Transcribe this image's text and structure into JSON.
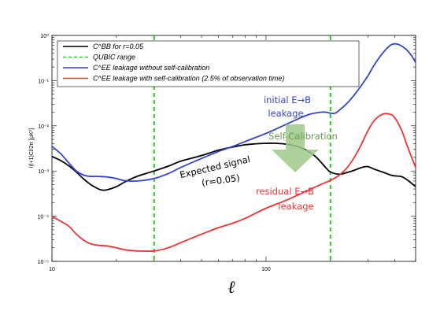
{
  "chart_data": {
    "type": "line",
    "title": "",
    "xlabel": "ℓ",
    "ylabel": "l(l+1)Cl/2π [μK²]",
    "xscale": "log",
    "yscale": "log",
    "xlim": [
      10,
      500
    ],
    "ylim": [
      1e-05,
      1
    ],
    "grid": false,
    "legend_position": "top-left",
    "x_ticks": [
      {
        "value": 10,
        "label": "10"
      },
      {
        "value": 100,
        "label": "100"
      }
    ],
    "y_ticks": [
      {
        "value": 1e-05,
        "label": "10⁻⁵"
      },
      {
        "value": 0.0001,
        "label": "10⁻⁴"
      },
      {
        "value": 0.001,
        "label": "10⁻³"
      },
      {
        "value": 0.01,
        "label": "10⁻²"
      },
      {
        "value": 0.1,
        "label": "10⁻¹"
      },
      {
        "value": 1,
        "label": "10⁰"
      }
    ],
    "legend": [
      {
        "label": "C^BB for r=0.05",
        "color": "#000000",
        "dash": false
      },
      {
        "label": "QUBIC range",
        "color": "#22cc22",
        "dash": true
      },
      {
        "label": "C^EE leakage without self-calibration",
        "color": "#3344cc",
        "dash": false
      },
      {
        "label": "C^EE leakage with self-calibration (2.5% of observation time)",
        "color": "#ee3333",
        "dash": false
      }
    ],
    "series": [
      {
        "key": "bb",
        "color": "#000000",
        "x": [
          10,
          11,
          12,
          13,
          14,
          15,
          16,
          17,
          18,
          20,
          22,
          25,
          30,
          35,
          40,
          50,
          60,
          70,
          80,
          90,
          100,
          110,
          120,
          130,
          140,
          150,
          160,
          170,
          180,
          190,
          200,
          220,
          240,
          260,
          280,
          300,
          320,
          350,
          380,
          400,
          430,
          460,
          500
        ],
        "y": [
          0.0021,
          0.0017,
          0.0013,
          0.00095,
          0.00068,
          0.00052,
          0.00043,
          0.00038,
          0.00038,
          0.00045,
          0.00058,
          0.00076,
          0.001,
          0.00128,
          0.00165,
          0.0022,
          0.0029,
          0.0034,
          0.0038,
          0.004,
          0.0041,
          0.0041,
          0.004,
          0.0038,
          0.0035,
          0.0031,
          0.0026,
          0.0021,
          0.0016,
          0.0012,
          0.00095,
          0.00085,
          0.00093,
          0.00105,
          0.0012,
          0.00125,
          0.0011,
          0.00095,
          0.00082,
          0.00078,
          0.00075,
          0.00062,
          0.00045
        ]
      },
      {
        "key": "leak_no_cal",
        "color": "#3344cc",
        "x": [
          10,
          11,
          12,
          13,
          14,
          15,
          16,
          18,
          20,
          22,
          25,
          30,
          35,
          40,
          50,
          60,
          70,
          80,
          100,
          120,
          140,
          160,
          180,
          190,
          200,
          210,
          220,
          240,
          260,
          280,
          300,
          320,
          350,
          380,
          400,
          420,
          450,
          480,
          500
        ],
        "y": [
          0.0035,
          0.0024,
          0.0015,
          0.001,
          0.00082,
          0.00076,
          0.00076,
          0.00074,
          0.00068,
          0.00061,
          0.0006,
          0.00068,
          0.00088,
          0.0012,
          0.0019,
          0.0027,
          0.0035,
          0.0045,
          0.0068,
          0.01,
          0.014,
          0.018,
          0.02,
          0.02,
          0.019,
          0.019,
          0.022,
          0.032,
          0.05,
          0.08,
          0.13,
          0.22,
          0.4,
          0.6,
          0.65,
          0.62,
          0.5,
          0.35,
          0.25
        ]
      },
      {
        "key": "leak_cal",
        "color": "#ee3333",
        "x": [
          10,
          11,
          12,
          13,
          14,
          15,
          16,
          18,
          20,
          22,
          25,
          30,
          35,
          40,
          50,
          60,
          70,
          80,
          100,
          120,
          140,
          160,
          180,
          200,
          220,
          240,
          260,
          280,
          300,
          320,
          350,
          380,
          400,
          430,
          460,
          500
        ],
        "y": [
          0.0001,
          7.7e-05,
          6e-05,
          4e-05,
          3e-05,
          2.5e-05,
          2.3e-05,
          2.2e-05,
          2e-05,
          1.8e-05,
          1.7e-05,
          1.7e-05,
          2e-05,
          2.6e-05,
          4e-05,
          5.6e-05,
          7e-05,
          9e-05,
          0.00015,
          0.00021,
          0.00029,
          0.00039,
          0.0005,
          0.00062,
          0.00081,
          0.0012,
          0.0021,
          0.004,
          0.008,
          0.013,
          0.018,
          0.018,
          0.015,
          0.008,
          0.0033,
          0.0012
        ]
      }
    ],
    "vlines": [
      {
        "x": 30,
        "color": "#22cc22",
        "dash": true
      },
      {
        "x": 200,
        "color": "#22cc22",
        "dash": true
      }
    ],
    "annotations": {
      "initial": {
        "line1": "initial E→B",
        "line2": "leakage",
        "color": "#3344cc"
      },
      "selfcal": {
        "text": "Self-Calibration",
        "color": "#6a9a52"
      },
      "expected": {
        "line1": "Expected signal",
        "line2": "(r=0.05)",
        "color": "#000000"
      },
      "residual": {
        "line1": "residual E→B",
        "line2": "leakage",
        "color": "#ee3333"
      }
    }
  }
}
